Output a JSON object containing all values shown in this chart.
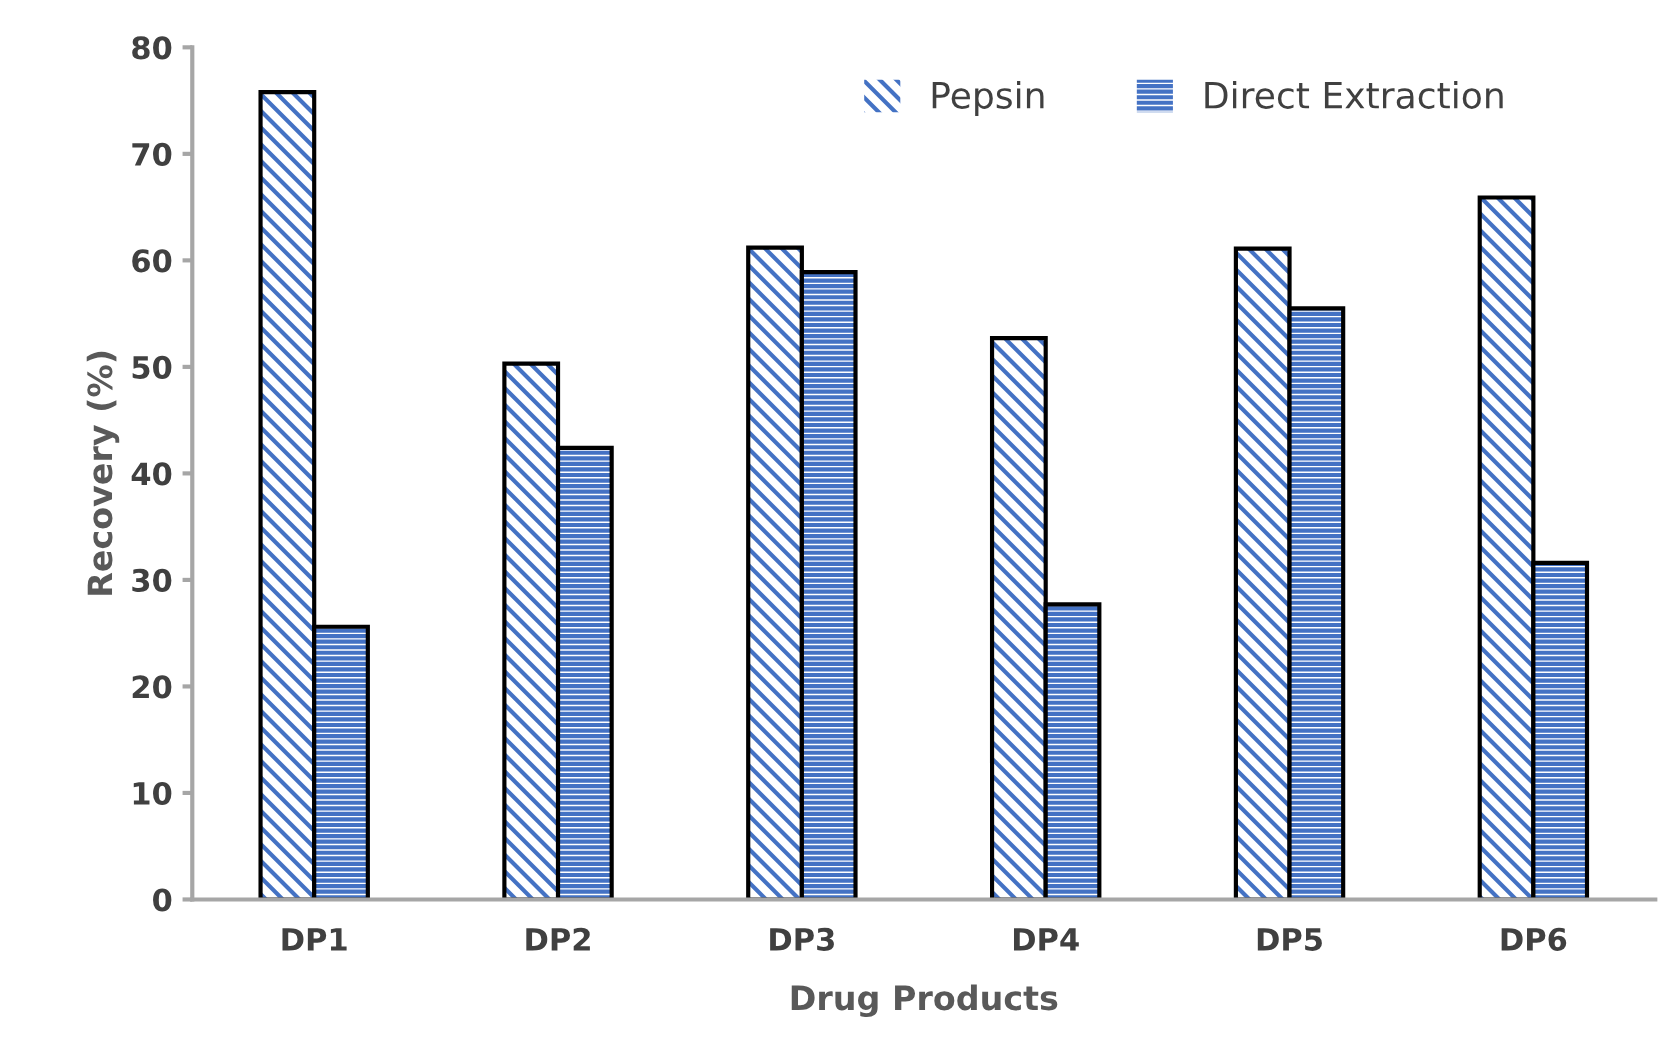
{
  "chart_data": {
    "type": "bar",
    "xlabel": "Drug Products",
    "ylabel": "Recovery (%)",
    "categories": [
      "DP1",
      "DP2",
      "DP3",
      "DP4",
      "DP5",
      "DP6"
    ],
    "series": [
      {
        "name": "Pepsin",
        "color": "#4472c4",
        "values": [
          75.8,
          50.3,
          61.2,
          52.7,
          61.1,
          65.9
        ]
      },
      {
        "name": "Direct Extraction",
        "color": "#4472c4",
        "values": [
          25.6,
          42.4,
          58.9,
          27.7,
          55.5,
          31.6
        ]
      }
    ],
    "ylim": [
      0,
      80
    ],
    "yticks": [
      0,
      10,
      20,
      30,
      40,
      50,
      60,
      70,
      80
    ],
    "grid": false,
    "legend": "top right"
  }
}
